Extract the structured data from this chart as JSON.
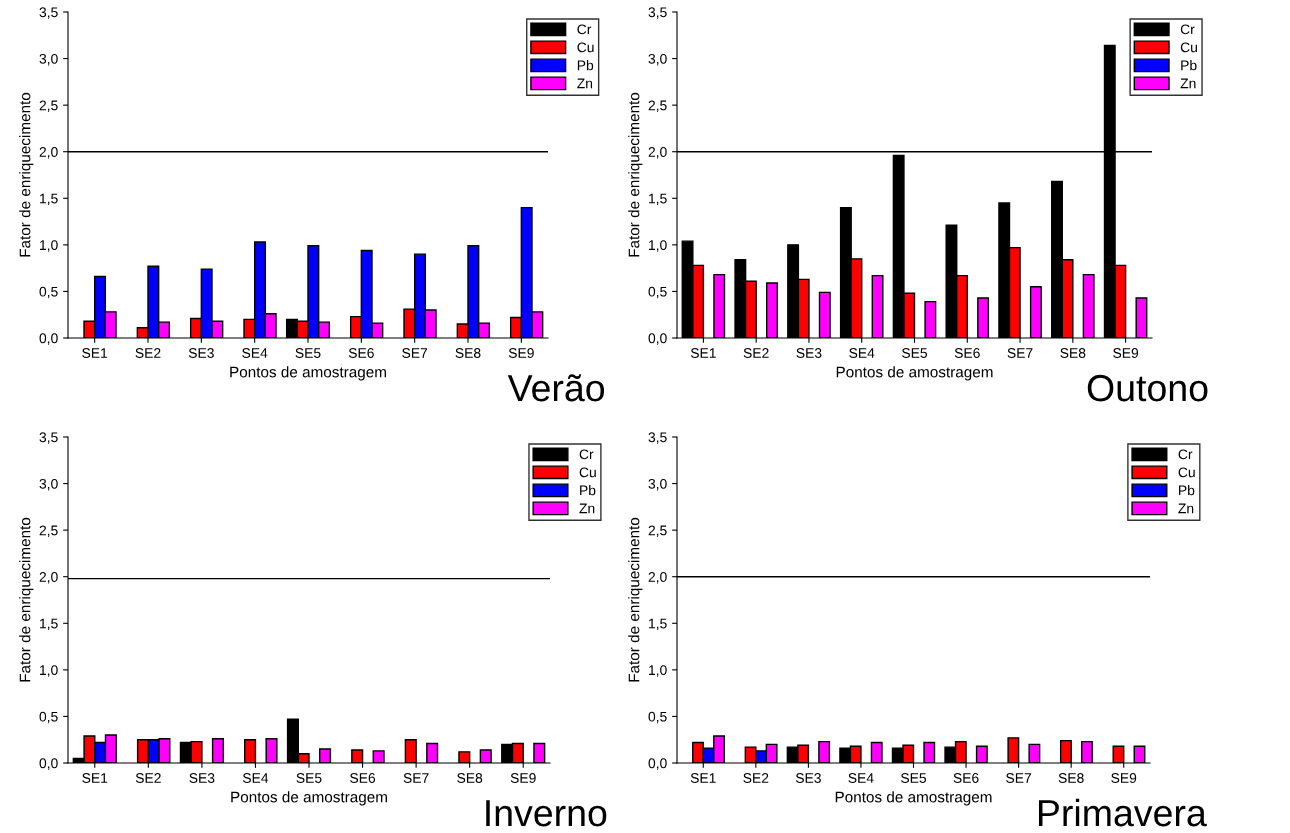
{
  "chart_data": [
    {
      "type": "bar",
      "xlabel": "Pontos de amostragem",
      "ylabel": "Fator de enriquecimento",
      "annotations": [
        "Verão"
      ],
      "categories": [
        "SE1",
        "SE2",
        "SE3",
        "SE4",
        "SE5",
        "SE6",
        "SE7",
        "SE8",
        "SE9"
      ],
      "series": [
        {
          "name": "Cr",
          "color": "#000000",
          "values": [
            null,
            null,
            null,
            null,
            0.2,
            null,
            null,
            null,
            null
          ]
        },
        {
          "name": "Cu",
          "color": "#ff0000",
          "values": [
            0.18,
            0.11,
            0.21,
            0.2,
            0.18,
            0.23,
            0.31,
            0.15,
            0.22
          ]
        },
        {
          "name": "Pb",
          "color": "#0000ff",
          "values": [
            0.66,
            0.77,
            0.74,
            1.03,
            0.99,
            0.94,
            0.9,
            0.99,
            1.4
          ]
        },
        {
          "name": "Zn",
          "color": "#ff00ff",
          "values": [
            0.28,
            0.17,
            0.18,
            0.26,
            0.17,
            0.16,
            0.3,
            0.16,
            0.28
          ]
        }
      ],
      "ylim": [
        0,
        3.5
      ],
      "yticks": [
        {
          "value": 0,
          "label": "0,0"
        },
        {
          "value": 0.5,
          "label": "0,5"
        },
        {
          "value": 1,
          "label": "1,0"
        },
        {
          "value": 1.5,
          "label": "1,5"
        },
        {
          "value": 2,
          "label": "2,0"
        },
        {
          "value": 2.5,
          "label": "2,5"
        },
        {
          "value": 3,
          "label": "3,0"
        },
        {
          "value": 3.5,
          "label": "3,5"
        }
      ],
      "ref_lines": [
        {
          "axis": "y",
          "value": 2.0,
          "color": "#000000"
        }
      ],
      "legend": "top right",
      "grid": false
    },
    {
      "type": "bar",
      "xlabel": "Pontos de amostragem",
      "ylabel": "Fator de enriquecimento",
      "annotations": [
        "Outono"
      ],
      "categories": [
        "SE1",
        "SE2",
        "SE3",
        "SE4",
        "SE5",
        "SE6",
        "SE7",
        "SE8",
        "SE9"
      ],
      "series": [
        {
          "name": "Cr",
          "color": "#000000",
          "values": [
            1.04,
            0.84,
            1.0,
            1.4,
            1.96,
            1.21,
            1.45,
            1.68,
            3.14
          ]
        },
        {
          "name": "Cu",
          "color": "#ff0000",
          "values": [
            0.78,
            0.61,
            0.63,
            0.85,
            0.48,
            0.67,
            0.97,
            0.84,
            0.78
          ]
        },
        {
          "name": "Pb",
          "color": "#0000ff",
          "values": [
            null,
            null,
            null,
            null,
            null,
            null,
            null,
            null,
            null
          ]
        },
        {
          "name": "Zn",
          "color": "#ff00ff",
          "values": [
            0.68,
            0.59,
            0.49,
            0.67,
            0.39,
            0.43,
            0.55,
            0.68,
            0.43
          ]
        }
      ],
      "ylim": [
        0,
        3.5
      ],
      "yticks": [
        {
          "value": 0,
          "label": "0,0"
        },
        {
          "value": 0.5,
          "label": "0,5"
        },
        {
          "value": 1,
          "label": "1,0"
        },
        {
          "value": 1.5,
          "label": "1,5"
        },
        {
          "value": 2,
          "label": "2,0"
        },
        {
          "value": 2.5,
          "label": "2,5"
        },
        {
          "value": 3,
          "label": "3,0"
        },
        {
          "value": 3.5,
          "label": "3,5"
        }
      ],
      "ref_lines": [
        {
          "axis": "y",
          "value": 2.0,
          "color": "#000000"
        }
      ],
      "legend": "top right",
      "grid": false
    },
    {
      "type": "bar",
      "xlabel": "Pontos de amostragem",
      "ylabel": "Fator de enriquecimento",
      "annotations": [
        "Inverno"
      ],
      "categories": [
        "SE1",
        "SE2",
        "SE3",
        "SE4",
        "SE5",
        "SE6",
        "SE7",
        "SE8",
        "SE9"
      ],
      "series": [
        {
          "name": "Cr",
          "color": "#000000",
          "values": [
            0.05,
            null,
            0.22,
            null,
            0.47,
            null,
            null,
            null,
            0.2
          ]
        },
        {
          "name": "Cu",
          "color": "#ff0000",
          "values": [
            0.29,
            0.25,
            0.23,
            0.25,
            0.1,
            0.14,
            0.25,
            0.12,
            0.21
          ]
        },
        {
          "name": "Pb",
          "color": "#0000ff",
          "values": [
            0.22,
            0.25,
            null,
            null,
            null,
            null,
            null,
            null,
            null
          ]
        },
        {
          "name": "Zn",
          "color": "#ff00ff",
          "values": [
            0.3,
            0.26,
            0.26,
            0.26,
            0.15,
            0.13,
            0.21,
            0.14,
            0.21
          ]
        }
      ],
      "ylim": [
        0,
        3.5
      ],
      "yticks": [
        {
          "value": 0,
          "label": "0,0"
        },
        {
          "value": 0.5,
          "label": "0,5"
        },
        {
          "value": 1,
          "label": "1,0"
        },
        {
          "value": 1.5,
          "label": "1,5"
        },
        {
          "value": 2,
          "label": "2,0"
        },
        {
          "value": 2.5,
          "label": "2,5"
        },
        {
          "value": 3,
          "label": "3,0"
        },
        {
          "value": 3.5,
          "label": "3,5"
        }
      ],
      "ref_lines": [
        {
          "axis": "y",
          "value": 1.98,
          "color": "#000000"
        }
      ],
      "legend": "top right",
      "grid": false
    },
    {
      "type": "bar",
      "xlabel": "Pontos de amostragem",
      "ylabel": "Fator de enriquecimento",
      "annotations": [
        "Primavera"
      ],
      "categories": [
        "SE1",
        "SE2",
        "SE3",
        "SE4",
        "SE5",
        "SE6",
        "SE7",
        "SE8",
        "SE9"
      ],
      "series": [
        {
          "name": "Cr",
          "color": "#000000",
          "values": [
            null,
            null,
            0.17,
            0.16,
            0.16,
            0.17,
            null,
            null,
            null
          ]
        },
        {
          "name": "Cu",
          "color": "#ff0000",
          "values": [
            0.22,
            0.17,
            0.19,
            0.18,
            0.19,
            0.23,
            0.27,
            0.24,
            0.18
          ]
        },
        {
          "name": "Pb",
          "color": "#0000ff",
          "values": [
            0.16,
            0.13,
            null,
            null,
            null,
            null,
            null,
            null,
            null
          ]
        },
        {
          "name": "Zn",
          "color": "#ff00ff",
          "values": [
            0.29,
            0.2,
            0.23,
            0.22,
            0.22,
            0.18,
            0.2,
            0.23,
            0.18
          ]
        }
      ],
      "ylim": [
        0,
        3.5
      ],
      "yticks": [
        {
          "value": 0,
          "label": "0,0"
        },
        {
          "value": 0.5,
          "label": "0,5"
        },
        {
          "value": 1,
          "label": "1,0"
        },
        {
          "value": 1.5,
          "label": "1,5"
        },
        {
          "value": 2,
          "label": "2,0"
        },
        {
          "value": 2.5,
          "label": "2,5"
        },
        {
          "value": 3,
          "label": "3,0"
        },
        {
          "value": 3.5,
          "label": "3,5"
        }
      ],
      "ref_lines": [
        {
          "axis": "y",
          "value": 2.0,
          "color": "#000000"
        }
      ],
      "legend": "top right",
      "grid": false
    }
  ]
}
